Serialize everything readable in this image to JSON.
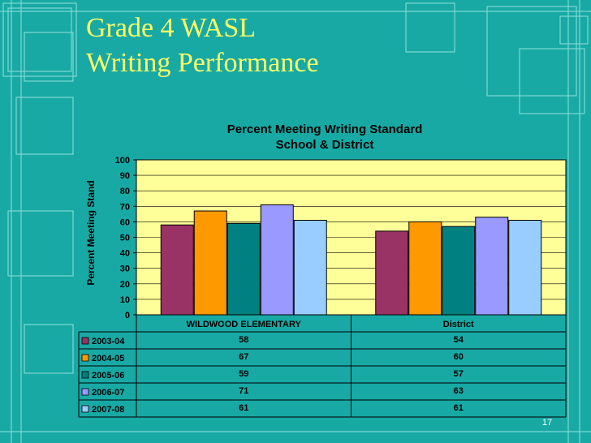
{
  "slide": {
    "title_line1": "Grade 4 WASL",
    "title_line2": "Writing Performance",
    "slide_number": "17"
  },
  "colors": {
    "background": "#18a9a4",
    "title": "#ffff66",
    "plot_area": "#ffff99"
  },
  "chart_data": {
    "type": "bar",
    "title_line1": "Percent Meeting Writing Standard",
    "title_line2": "School & District",
    "ylabel": "Percent Meeting Stand",
    "xlabel": "",
    "ylim": [
      0,
      100
    ],
    "yticks": [
      0,
      10,
      20,
      30,
      40,
      50,
      60,
      70,
      80,
      90,
      100
    ],
    "categories": [
      "WILDWOOD ELEMENTARY",
      "District"
    ],
    "series": [
      {
        "name": "2003-04",
        "color": "#993366",
        "values": [
          58,
          54
        ]
      },
      {
        "name": "2004-05",
        "color": "#ff9900",
        "values": [
          67,
          60
        ]
      },
      {
        "name": "2005-06",
        "color": "#008080",
        "values": [
          59,
          57
        ]
      },
      {
        "name": "2006-07",
        "color": "#9999ff",
        "values": [
          71,
          63
        ]
      },
      {
        "name": "2007-08",
        "color": "#99ccff",
        "values": [
          61,
          61
        ]
      }
    ],
    "grid": true,
    "legend": "data-table"
  }
}
